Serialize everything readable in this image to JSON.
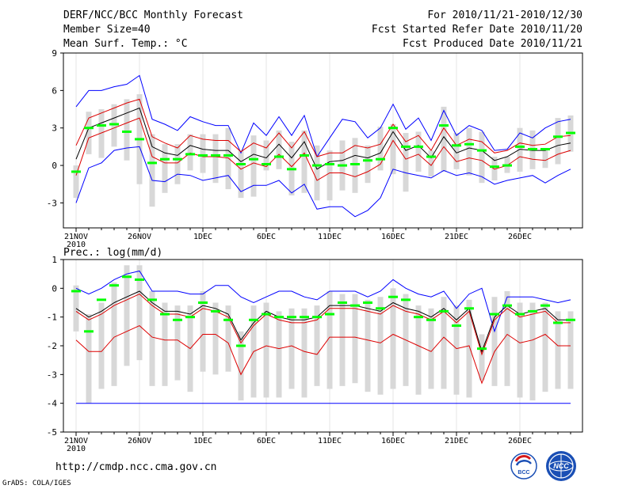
{
  "header": {
    "title": "DERF/NCC/BCC Monthly Forecast",
    "member_size": "Member Size=40",
    "variable": "Mean Surf. Temp.: °C",
    "forecast_period": "For 2010/11/21-2010/12/30",
    "fcst_started": "Fcst Started Refer Date 2010/11/20",
    "fcst_produced": "Fcst Produced Date 2010/11/21"
  },
  "precip_label": "Prec.: log(mm/d)",
  "footer": {
    "url": "http://cmdp.ncc.cma.gov.cn",
    "credit": "GrADS: COLA/IGES",
    "logo_bcc": "BCC",
    "logo_ncc": "NCC"
  },
  "colors": {
    "max_min": "#0000ff",
    "spread": "#dd0000",
    "mean": "#000000",
    "median": "#00ff00",
    "box": "#d8d8d8"
  },
  "chart_data": [
    {
      "type": "box",
      "title": "Mean Surf. Temp.: °C",
      "ylim": [
        -5,
        9
      ],
      "yticks": [
        "-3",
        "0",
        "3",
        "6",
        "9"
      ],
      "xticks": [
        "21NOV\n2010",
        "26NOV",
        "1DEC",
        "6DEC",
        "11DEC",
        "16DEC",
        "21DEC",
        "26DEC"
      ],
      "x_days": [
        1,
        6,
        11,
        16,
        21,
        26,
        31,
        36
      ],
      "n_days": 40,
      "series": {
        "max": [
          4.7,
          6.0,
          6.0,
          6.3,
          6.5,
          7.2,
          3.7,
          3.3,
          2.8,
          3.9,
          3.5,
          3.2,
          3.2,
          1.0,
          3.4,
          2.4,
          3.9,
          2.4,
          4.0,
          0.7,
          2.2,
          3.7,
          3.5,
          2.2,
          3.0,
          4.9,
          2.9,
          3.8,
          2.0,
          4.4,
          2.4,
          3.2,
          2.8,
          1.2,
          1.3,
          2.6,
          2.2,
          3.0,
          3.5,
          3.7
        ],
        "q75": [
          1.6,
          3.8,
          4.2,
          4.6,
          5.0,
          5.3,
          2.3,
          1.8,
          1.4,
          2.4,
          2.1,
          2.0,
          2.0,
          1.1,
          1.8,
          1.4,
          2.6,
          1.4,
          2.7,
          0.7,
          1.0,
          1.0,
          1.6,
          1.4,
          1.7,
          3.3,
          1.9,
          2.4,
          1.2,
          3.0,
          1.6,
          2.1,
          1.9,
          1.0,
          1.2,
          1.8,
          1.6,
          1.7,
          2.3,
          2.4
        ],
        "mean": [
          0.5,
          3.0,
          3.4,
          3.8,
          4.2,
          4.6,
          1.5,
          1.0,
          0.8,
          1.6,
          1.3,
          1.2,
          1.2,
          0.3,
          0.9,
          0.6,
          1.7,
          0.6,
          1.9,
          -0.3,
          0.3,
          0.4,
          0.8,
          0.6,
          1.0,
          2.7,
          1.2,
          1.6,
          0.6,
          2.3,
          1.0,
          1.4,
          1.2,
          0.4,
          0.7,
          1.3,
          1.2,
          1.2,
          1.6,
          1.8
        ],
        "q25": [
          -0.8,
          2.2,
          2.6,
          3.0,
          3.4,
          3.8,
          0.7,
          0.2,
          0.2,
          1.0,
          0.7,
          0.7,
          0.6,
          -0.3,
          0.2,
          -0.1,
          0.9,
          -0.1,
          1.0,
          -1.2,
          -0.6,
          -0.6,
          -0.9,
          -0.5,
          0.1,
          2.0,
          0.5,
          0.9,
          0.0,
          1.5,
          0.3,
          0.6,
          0.4,
          -0.3,
          0.0,
          0.7,
          0.5,
          0.4,
          0.9,
          1.2
        ],
        "min": [
          -3.0,
          -0.2,
          0.2,
          1.2,
          1.4,
          1.5,
          -1.2,
          -1.3,
          -0.7,
          -0.8,
          -1.2,
          -1.0,
          -0.8,
          -2.1,
          -1.6,
          -1.6,
          -1.2,
          -2.2,
          -1.5,
          -3.5,
          -3.3,
          -3.3,
          -4.1,
          -3.6,
          -2.6,
          -0.3,
          -0.6,
          -0.8,
          -1.0,
          -0.4,
          -0.8,
          -0.6,
          -0.9,
          -1.5,
          -1.2,
          -1.0,
          -0.8,
          -1.4,
          -0.8,
          -0.3
        ],
        "box_hi": [
          0.0,
          4.3,
          4.5,
          4.9,
          5.3,
          5.7,
          2.5,
          1.7,
          1.7,
          2.5,
          2.5,
          2.5,
          3.0,
          1.2,
          2.4,
          2.0,
          2.8,
          1.9,
          2.8,
          1.6,
          1.2,
          2.0,
          2.2,
          1.6,
          3.1,
          3.3,
          2.6,
          2.7,
          1.2,
          4.7,
          2.6,
          3.0,
          2.7,
          0.7,
          0.7,
          3.0,
          2.8,
          1.4,
          3.8,
          4.0
        ],
        "box_lo": [
          -2.6,
          0.9,
          0.6,
          1.5,
          0.4,
          -1.5,
          -3.3,
          -2.2,
          -1.5,
          -0.4,
          -0.6,
          -1.4,
          -1.9,
          -2.6,
          -2.5,
          -0.4,
          -0.3,
          -2.4,
          -2.2,
          -2.8,
          -2.8,
          -2.0,
          -2.2,
          -1.4,
          -0.4,
          -0.7,
          -2.1,
          -0.5,
          -0.9,
          -0.5,
          -0.3,
          -0.8,
          -1.4,
          -1.2,
          -0.6,
          -0.5,
          -0.3,
          -0.2,
          0.1,
          1.1
        ],
        "median": [
          -0.5,
          3.0,
          3.2,
          3.3,
          2.7,
          2.1,
          0.2,
          0.5,
          0.5,
          0.9,
          0.8,
          0.8,
          0.8,
          0.1,
          0.5,
          0.1,
          0.7,
          -0.3,
          0.8,
          0.0,
          0.1,
          0.0,
          0.1,
          0.4,
          0.5,
          3.0,
          1.5,
          1.5,
          0.7,
          3.2,
          1.6,
          1.7,
          1.2,
          -0.1,
          0.0,
          1.5,
          1.3,
          1.3,
          2.3,
          2.6
        ]
      }
    },
    {
      "type": "box",
      "title": "Prec.: log(mm/d)",
      "ylim": [
        -5,
        1
      ],
      "yticks": [
        "-5",
        "-4",
        "-3",
        "-2",
        "-1",
        "0",
        "1"
      ],
      "xticks": [
        "21NOV\n2010",
        "26NOV",
        "1DEC",
        "6DEC",
        "11DEC",
        "16DEC",
        "21DEC",
        "26DEC"
      ],
      "x_days": [
        1,
        6,
        11,
        16,
        21,
        26,
        31,
        36
      ],
      "n_days": 40,
      "series": {
        "max": [
          0.0,
          -0.2,
          0.0,
          0.3,
          0.5,
          0.6,
          -0.1,
          -0.1,
          -0.1,
          -0.2,
          -0.2,
          0.1,
          0.1,
          -0.3,
          -0.5,
          -0.3,
          -0.1,
          -0.1,
          -0.3,
          -0.4,
          -0.1,
          -0.1,
          -0.1,
          -0.3,
          -0.1,
          0.3,
          0.0,
          -0.2,
          -0.3,
          -0.1,
          -0.7,
          -0.2,
          0.0,
          -1.5,
          -0.3,
          -0.3,
          -0.3,
          -0.4,
          -0.5,
          -0.4
        ],
        "mean": [
          -0.7,
          -1.0,
          -0.8,
          -0.5,
          -0.3,
          -0.1,
          -0.5,
          -0.8,
          -0.8,
          -0.9,
          -0.6,
          -0.7,
          -0.9,
          -1.8,
          -1.2,
          -0.8,
          -1.0,
          -1.1,
          -1.1,
          -1.0,
          -0.6,
          -0.6,
          -0.6,
          -0.7,
          -0.8,
          -0.5,
          -0.7,
          -0.8,
          -1.0,
          -0.7,
          -1.1,
          -0.7,
          -2.2,
          -1.0,
          -0.6,
          -0.9,
          -0.8,
          -0.7,
          -1.1,
          -1.1
        ],
        "q75": [
          -0.8,
          -1.1,
          -0.9,
          -0.6,
          -0.4,
          -0.2,
          -0.6,
          -0.9,
          -0.9,
          -1.0,
          -0.7,
          -0.8,
          -1.0,
          -1.9,
          -1.3,
          -0.9,
          -1.1,
          -1.2,
          -1.2,
          -1.1,
          -0.7,
          -0.7,
          -0.7,
          -0.8,
          -0.9,
          -0.6,
          -0.8,
          -0.9,
          -1.1,
          -0.8,
          -1.2,
          -0.8,
          -2.3,
          -1.1,
          -0.7,
          -1.0,
          -0.9,
          -0.8,
          -1.2,
          -1.2
        ],
        "q25": [
          -1.8,
          -2.2,
          -2.2,
          -1.7,
          -1.5,
          -1.3,
          -1.7,
          -1.8,
          -1.8,
          -2.1,
          -1.6,
          -1.6,
          -1.9,
          -3.0,
          -2.2,
          -2.0,
          -2.1,
          -2.0,
          -2.2,
          -2.3,
          -1.7,
          -1.7,
          -1.7,
          -1.8,
          -1.9,
          -1.6,
          -1.8,
          -2.0,
          -2.2,
          -1.7,
          -2.1,
          -2.0,
          -3.3,
          -2.2,
          -1.6,
          -1.9,
          -1.8,
          -1.6,
          -2.0,
          -2.0
        ],
        "min": [
          -4.0,
          -4.0,
          -4.0,
          -4.0,
          -4.0,
          -4.0,
          -4.0,
          -4.0,
          -4.0,
          -4.0,
          -4.0,
          -4.0,
          -4.0,
          -4.0,
          -4.0,
          -4.0,
          -4.0,
          -4.0,
          -4.0,
          -4.0,
          -4.0,
          -4.0,
          -4.0,
          -4.0,
          -4.0,
          -4.0,
          -4.0,
          -4.0,
          -4.0,
          -4.0,
          -4.0,
          -4.0,
          -4.0,
          -4.0,
          -4.0,
          -4.0,
          -4.0,
          -4.0,
          -4.0,
          -4.0
        ],
        "box_hi": [
          0.1,
          -0.9,
          -0.5,
          0.2,
          0.8,
          0.8,
          -0.1,
          -0.5,
          -0.6,
          -0.6,
          -0.1,
          -0.5,
          -0.6,
          -1.5,
          -0.6,
          -0.5,
          -0.8,
          -0.7,
          -0.7,
          -0.6,
          -0.1,
          -0.2,
          -0.2,
          -0.4,
          -0.3,
          0.0,
          -0.2,
          -0.6,
          -0.7,
          -0.3,
          -0.6,
          -0.4,
          -1.6,
          -0.3,
          -0.1,
          -0.5,
          -0.5,
          -0.5,
          -0.8,
          -0.8
        ],
        "box_lo": [
          -1.5,
          -4.0,
          -3.5,
          -3.4,
          -2.7,
          -2.5,
          -3.4,
          -3.4,
          -3.2,
          -3.6,
          -2.9,
          -3.0,
          -2.9,
          -3.9,
          -3.8,
          -3.8,
          -3.8,
          -3.5,
          -3.8,
          -3.4,
          -3.5,
          -3.4,
          -3.3,
          -3.6,
          -3.7,
          -3.5,
          -3.4,
          -3.7,
          -3.5,
          -3.5,
          -3.7,
          -3.8,
          -3.2,
          -3.4,
          -3.4,
          -3.8,
          -3.9,
          -3.6,
          -3.5,
          -3.5
        ],
        "median": [
          -0.1,
          -1.5,
          -0.4,
          0.1,
          0.4,
          0.3,
          -0.4,
          -0.9,
          -1.1,
          -1.0,
          -0.5,
          -0.8,
          -1.1,
          -2.0,
          -1.1,
          -0.9,
          -1.0,
          -1.0,
          -1.0,
          -1.0,
          -0.9,
          -0.5,
          -0.6,
          -0.5,
          -0.7,
          -0.3,
          -0.4,
          -1.0,
          -1.1,
          -0.8,
          -1.3,
          -0.7,
          -2.1,
          -0.9,
          -0.6,
          -0.9,
          -0.8,
          -0.6,
          -1.2,
          -1.1
        ]
      }
    }
  ]
}
